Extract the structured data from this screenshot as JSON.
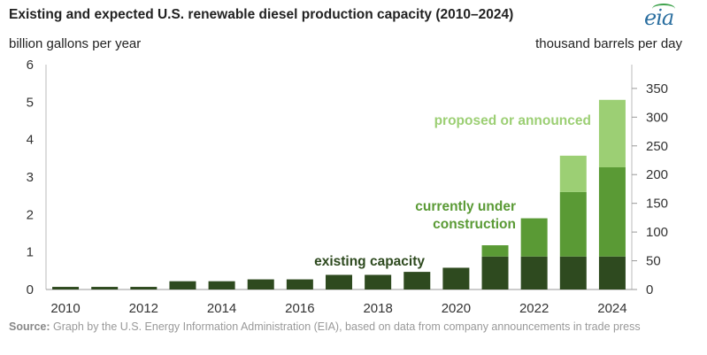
{
  "title": "Existing and expected U.S. renewable diesel production capacity (2010–2024)",
  "logo_text": "eia",
  "left_unit": "billion gallons per year",
  "right_unit": "thousand barrels per day",
  "source_label": "Source:",
  "source_text": "Graph by the U.S. Energy Information Administration (EIA), based on data from company announcements in trade press",
  "colors": {
    "existing": "#2e4a1f",
    "construction": "#5a9a35",
    "proposed": "#9ccf74",
    "text_existing": "#2e4a1f",
    "text_construction": "#5a9a35",
    "text_proposed": "#9ccf74"
  },
  "chart_data": {
    "type": "bar",
    "stacked": true,
    "categories": [
      "2010",
      "2011",
      "2012",
      "2013",
      "2014",
      "2015",
      "2016",
      "2017",
      "2018",
      "2019",
      "2020",
      "2021",
      "2022",
      "2023",
      "2024"
    ],
    "x_tick_labels": [
      "2010",
      "",
      "2012",
      "",
      "2014",
      "",
      "2016",
      "",
      "2018",
      "",
      "2020",
      "",
      "2022",
      "",
      "2024"
    ],
    "series": [
      {
        "name": "existing capacity",
        "values": [
          0.07,
          0.07,
          0.07,
          0.22,
          0.22,
          0.27,
          0.27,
          0.39,
          0.39,
          0.47,
          0.58,
          0.88,
          0.88,
          0.88,
          0.88
        ]
      },
      {
        "name": "currently under construction",
        "values": [
          0,
          0,
          0,
          0,
          0,
          0,
          0,
          0,
          0,
          0,
          0,
          0.3,
          1.02,
          1.72,
          2.38
        ]
      },
      {
        "name": "proposed or announced",
        "values": [
          0,
          0,
          0,
          0,
          0,
          0,
          0,
          0,
          0,
          0,
          0,
          0,
          0,
          0.97,
          1.8
        ]
      }
    ],
    "ylim": [
      0,
      6
    ],
    "yticks": [
      0,
      1,
      2,
      3,
      4,
      5,
      6
    ],
    "y2_label_ticks": [
      0,
      50,
      100,
      150,
      200,
      250,
      300,
      350
    ],
    "y2_per_y": 65.24,
    "annotations": [
      {
        "text": "existing capacity",
        "series": 0
      },
      {
        "text_lines": [
          "currently under",
          "construction"
        ],
        "series": 1
      },
      {
        "text": "proposed or announced",
        "series": 2
      }
    ]
  }
}
